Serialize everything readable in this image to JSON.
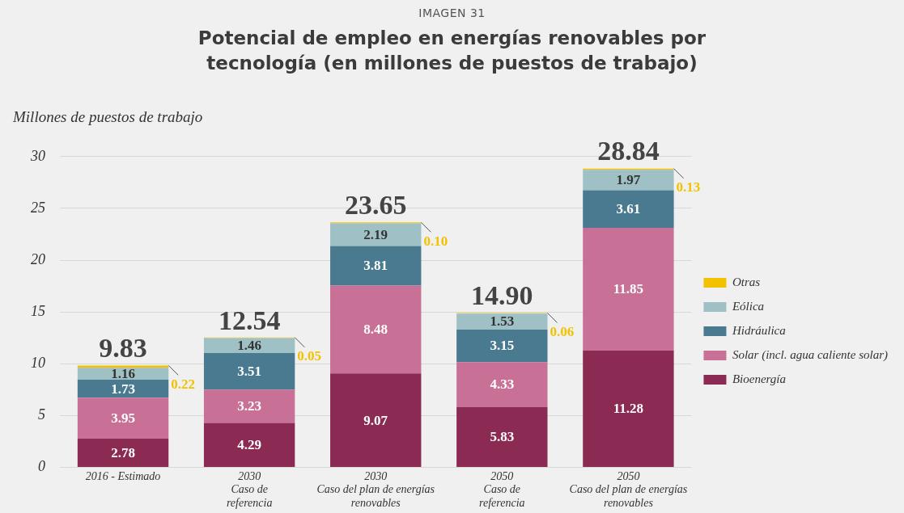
{
  "chart_data": {
    "type": "bar",
    "subtitle": "IMAGEN 31",
    "title": "Potencial de empleo en energías renovables por tecnología (en millones de puestos de trabajo)",
    "ylabel": "Millones de puestos de trabajo",
    "categories": [
      "2016 - Estimado",
      "2030\nCaso de\nreferencia",
      "2030\nCaso del plan de energías\nrenovables",
      "2050\nCaso de\nreferencia",
      "2050\nCaso del plan de energías\nrenovables"
    ],
    "stacked": true,
    "series": [
      {
        "name": "Bioenergía",
        "color": "#8b2a52",
        "values": [
          2.78,
          4.29,
          9.07,
          5.83,
          11.28
        ],
        "value_labels": [
          "2.78",
          "4.29",
          "9.07",
          "5.83",
          "11.28"
        ]
      },
      {
        "name": "Solar (incl. agua caliente solar)",
        "color": "#c97097",
        "values": [
          3.95,
          3.23,
          8.48,
          4.33,
          11.85
        ],
        "value_labels": [
          "3.95",
          "3.23",
          "8.48",
          "4.33",
          "11.85"
        ]
      },
      {
        "name": "Hidráulica",
        "color": "#4a7a90",
        "values": [
          1.73,
          3.51,
          3.81,
          3.15,
          3.61
        ],
        "value_labels": [
          "1.73",
          "3.51",
          "3.81",
          "3.15",
          "3.61"
        ]
      },
      {
        "name": "Eólica",
        "color": "#9fc1c5",
        "values": [
          1.16,
          1.46,
          2.19,
          1.53,
          1.97
        ],
        "value_labels": [
          "1.16",
          "1.46",
          "2.19",
          "1.53",
          "1.97"
        ]
      },
      {
        "name": "Otras",
        "color": "#f2c200",
        "values": [
          0.22,
          0.05,
          0.1,
          0.06,
          0.13
        ],
        "value_labels": [
          "0.22",
          "0.05",
          "0.10",
          "0.06",
          "0.13"
        ]
      }
    ],
    "totals": [
      "9.83",
      "12.54",
      "23.65",
      "14.90",
      "28.84"
    ],
    "ylim": [
      0,
      30
    ],
    "yticks": [
      0,
      5,
      10,
      15,
      20,
      25,
      30
    ],
    "grid": "y",
    "legend": "right"
  }
}
